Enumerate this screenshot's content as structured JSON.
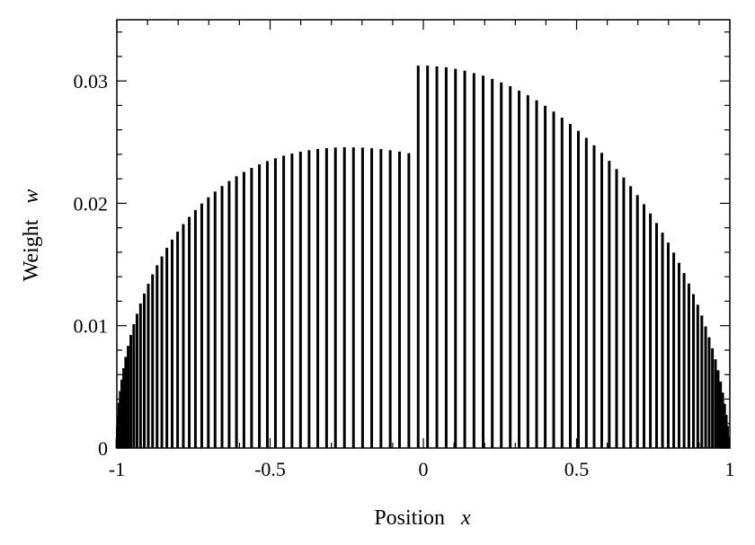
{
  "chart_data": {
    "type": "bar",
    "title": "",
    "xlabel": "Position",
    "xlabel_var": "x",
    "ylabel": "Weight",
    "ylabel_var": "w",
    "xlim": [
      -1,
      1
    ],
    "ylim": [
      0,
      0.035
    ],
    "xticks": [
      -1,
      -0.5,
      0,
      0.5,
      1
    ],
    "xtick_labels": [
      "-1",
      "-0.5",
      "0",
      "0.5",
      "1"
    ],
    "yticks": [
      0,
      0.01,
      0.02,
      0.03
    ],
    "ytick_labels": [
      "0",
      "0.01",
      "0.02",
      "0.03"
    ],
    "grid": false,
    "legend": "none",
    "n_bars": 100,
    "x": [
      -0.9997,
      -0.9984,
      -0.9962,
      -0.993,
      -0.9889,
      -0.9838,
      -0.9778,
      -0.9709,
      -0.9631,
      -0.9544,
      -0.9447,
      -0.9342,
      -0.9228,
      -0.9105,
      -0.8974,
      -0.8835,
      -0.8687,
      -0.8531,
      -0.8368,
      -0.8196,
      -0.8017,
      -0.7831,
      -0.7637,
      -0.7437,
      -0.723,
      -0.7015,
      -0.6795,
      -0.6568,
      -0.6336,
      -0.6097,
      -0.5853,
      -0.5604,
      -0.5349,
      -0.509,
      -0.4826,
      -0.4557,
      -0.4285,
      -0.4008,
      -0.3728,
      -0.3444,
      -0.3157,
      -0.2868,
      -0.2575,
      -0.228,
      -0.1983,
      -0.1684,
      -0.1383,
      -0.1081,
      -0.0777,
      -0.0473,
      -0.0168,
      0.0137,
      0.0441,
      0.0745,
      0.1049,
      0.1351,
      0.1652,
      0.1951,
      0.2248,
      0.2543,
      0.2836,
      0.3125,
      0.3412,
      0.3696,
      0.3976,
      0.4253,
      0.4525,
      0.4794,
      0.5058,
      0.5318,
      0.5572,
      0.5822,
      0.6066,
      0.6305,
      0.6538,
      0.6764,
      0.6985,
      0.72,
      0.7408,
      0.7609,
      0.7803,
      0.799,
      0.817,
      0.8342,
      0.8507,
      0.8664,
      0.8813,
      0.8954,
      0.9086,
      0.921,
      0.9325,
      0.9432,
      0.953,
      0.9618,
      0.9698,
      0.9768,
      0.983,
      0.9882,
      0.9924,
      0.9957
    ],
    "values": [
      0.00077,
      0.00175,
      0.00272,
      0.00369,
      0.00465,
      0.00559,
      0.00653,
      0.00745,
      0.00835,
      0.00924,
      0.01012,
      0.01097,
      0.01181,
      0.01262,
      0.01342,
      0.01419,
      0.01494,
      0.01566,
      0.01636,
      0.01703,
      0.01768,
      0.0183,
      0.01889,
      0.01945,
      0.01998,
      0.02049,
      0.02096,
      0.02141,
      0.02182,
      0.02221,
      0.02256,
      0.02289,
      0.02318,
      0.02345,
      0.02368,
      0.02389,
      0.02407,
      0.02422,
      0.02434,
      0.02444,
      0.02451,
      0.02456,
      0.02458,
      0.02457,
      0.02455,
      0.0245,
      0.02443,
      0.02434,
      0.02423,
      0.0241,
      0.03125,
      0.03125,
      0.03119,
      0.03111,
      0.03099,
      0.03084,
      0.03064,
      0.03043,
      0.03017,
      0.02988,
      0.02957,
      0.02921,
      0.02883,
      0.02842,
      0.02797,
      0.0275,
      0.027,
      0.02648,
      0.02592,
      0.02535,
      0.02474,
      0.02412,
      0.02347,
      0.0228,
      0.02211,
      0.0214,
      0.02067,
      0.01993,
      0.01917,
      0.01839,
      0.0176,
      0.01679,
      0.01597,
      0.01514,
      0.0143,
      0.01344,
      0.01258,
      0.01171,
      0.01083,
      0.00994,
      0.00905,
      0.00815,
      0.00725,
      0.00635,
      0.00544,
      0.00453,
      0.00362,
      0.00271,
      0.0018,
      0.0009
    ]
  }
}
